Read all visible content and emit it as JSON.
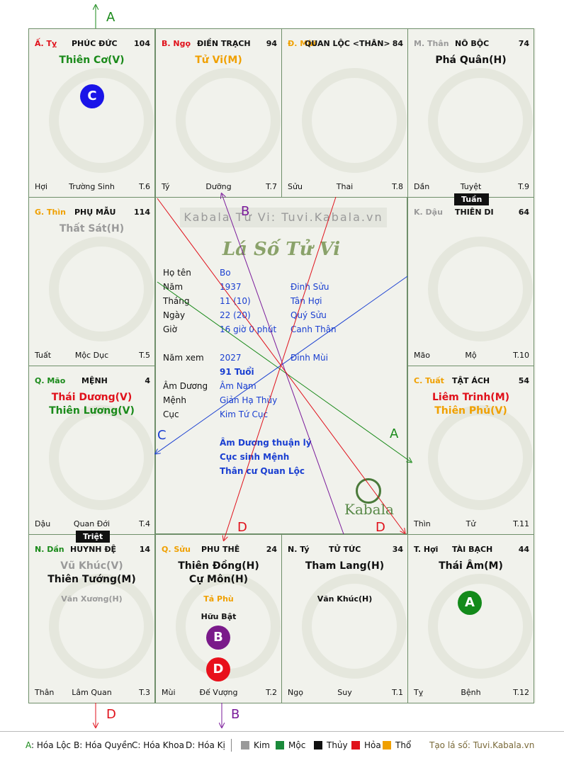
{
  "palaces": [
    {
      "branch": "Ấ. Tỵ",
      "branch_color": "#e0111b",
      "name": "PHÚC ĐỨC",
      "num": "104",
      "stars": [
        {
          "t": "Thiên Cơ(V)",
          "c": "#1a8a1a"
        }
      ],
      "minor": [],
      "bottom_left": "Hợi",
      "bottom_center": "Trường Sinh",
      "bottom_right": "T.6"
    },
    {
      "branch": "B. Ngọ",
      "branch_color": "#e0111b",
      "name": "ĐIỀN TRẠCH",
      "num": "94",
      "stars": [
        {
          "t": "Tử Vi(M)",
          "c": "#f0a000"
        }
      ],
      "minor": [],
      "bottom_left": "Tý",
      "bottom_center": "Dưỡng",
      "bottom_right": "T.7"
    },
    {
      "branch": "Đ. Mùi",
      "branch_color": "#f0a000",
      "name": "QUAN LỘC <THÂN>",
      "num": "84",
      "stars": [],
      "minor": [],
      "bottom_left": "Sửu",
      "bottom_center": "Thai",
      "bottom_right": "T.8"
    },
    {
      "branch": "M. Thân",
      "branch_color": "#9a9a9a",
      "name": "NÔ BỘC",
      "num": "74",
      "stars": [
        {
          "t": "Phá Quân(H)",
          "c": "#111111"
        }
      ],
      "minor": [],
      "bottom_left": "Dần",
      "bottom_center": "Tuyệt",
      "bottom_right": "T.9"
    },
    {
      "branch": "G. Thìn",
      "branch_color": "#f0a000",
      "name": "PHỤ MẪU",
      "num": "114",
      "stars": [
        {
          "t": "Thất Sát(H)",
          "c": "#9a9a9a"
        }
      ],
      "minor": [],
      "bottom_left": "Tuất",
      "bottom_center": "Mộc Dục",
      "bottom_right": "T.5"
    },
    {
      "branch": "K. Dậu",
      "branch_color": "#9a9a9a",
      "name": "THIÊN DI",
      "num": "64",
      "stars": [],
      "minor": [],
      "bottom_left": "Mão",
      "bottom_center": "Mộ",
      "bottom_right": "T.10"
    },
    {
      "branch": "Q. Mão",
      "branch_color": "#1a8a1a",
      "name": "MỆNH",
      "num": "4",
      "stars": [
        {
          "t": "Thái Dương(V)",
          "c": "#e0111b"
        },
        {
          "t": "Thiên Lương(V)",
          "c": "#1a8a1a"
        }
      ],
      "minor": [],
      "bottom_left": "Dậu",
      "bottom_center": "Quan Đới",
      "bottom_right": "T.4"
    },
    {
      "branch": "C. Tuất",
      "branch_color": "#f0a000",
      "name": "TẬT ÁCH",
      "num": "54",
      "stars": [
        {
          "t": "Liêm Trinh(M)",
          "c": "#e0111b"
        },
        {
          "t": "Thiên Phủ(V)",
          "c": "#f0a000"
        }
      ],
      "minor": [],
      "bottom_left": "Thìn",
      "bottom_center": "Tử",
      "bottom_right": "T.11"
    },
    {
      "branch": "N. Dần",
      "branch_color": "#1a8a1a",
      "name": "HUYNH ĐỆ",
      "num": "14",
      "stars": [
        {
          "t": "Vũ Khúc(V)",
          "c": "#9a9a9a"
        },
        {
          "t": "Thiên Tướng(M)",
          "c": "#111111"
        }
      ],
      "minor": [
        {
          "t": "Văn Xương(H)",
          "c": "#9a9a9a"
        }
      ],
      "bottom_left": "Thân",
      "bottom_center": "Lâm Quan",
      "bottom_right": "T.3"
    },
    {
      "branch": "Q. Sửu",
      "branch_color": "#f0a000",
      "name": "PHU THÊ",
      "num": "24",
      "stars": [
        {
          "t": "Thiên Đồng(H)",
          "c": "#111111"
        },
        {
          "t": "Cự Môn(H)",
          "c": "#111111"
        }
      ],
      "minor": [
        {
          "t": "Tả Phù",
          "c": "#f0a000"
        },
        {
          "t": "Hữu Bật",
          "c": "#111111"
        }
      ],
      "bottom_left": "Mùi",
      "bottom_center": "Đế Vượng",
      "bottom_right": "T.2"
    },
    {
      "branch": "N. Tý",
      "branch_color": "#111111",
      "name": "TỬ TỨC",
      "num": "34",
      "stars": [
        {
          "t": "Tham Lang(H)",
          "c": "#111111"
        }
      ],
      "minor": [
        {
          "t": "Văn Khúc(H)",
          "c": "#111111"
        }
      ],
      "bottom_left": "Ngọ",
      "bottom_center": "Suy",
      "bottom_right": "T.1"
    },
    {
      "branch": "T. Hợi",
      "branch_color": "#111111",
      "name": "TÀI BẠCH",
      "num": "44",
      "stars": [
        {
          "t": "Thái Âm(M)",
          "c": "#111111"
        }
      ],
      "minor": [],
      "bottom_left": "Tỵ",
      "bottom_center": "Bệnh",
      "bottom_right": "T.12"
    }
  ],
  "tags": {
    "tuan": "Tuần",
    "triet": "Triệt"
  },
  "center": {
    "watermark": "Kabala Tử Vi: Tuvi.Kabala.vn",
    "title": "Lá Số Tử Vi",
    "rows": [
      {
        "label": "Họ tên",
        "v1": "Bo",
        "v2": ""
      },
      {
        "label": "Năm",
        "v1": "1937",
        "v2": "Đinh Sửu"
      },
      {
        "label": "Tháng",
        "v1": "11  (10)",
        "v2": "Tân Hợi"
      },
      {
        "label": "Ngày",
        "v1": "22  (20)",
        "v2": "Quý Sửu"
      },
      {
        "label": "Giờ",
        "v1": "16 giờ 0 phút",
        "v2": "Canh Thân"
      }
    ],
    "year_view_label": "Năm xem",
    "year_view": "2027",
    "year_view_can": "Đinh Mùi",
    "age": "91 Tuổi",
    "rows2": [
      {
        "label": "Âm Dương",
        "v1": "Âm Nam"
      },
      {
        "label": "Mệnh",
        "v1": "Giản Hạ Thủy"
      },
      {
        "label": "Cục",
        "v1": "Kim Tứ Cục"
      }
    ],
    "notes": [
      "Âm Dương thuận lý",
      "Cục sinh Mệnh",
      "Thân cư Quan Lộc"
    ],
    "logo": "Kabala"
  },
  "markers": {
    "A": "A",
    "B": "B",
    "C": "C",
    "D": "D"
  },
  "legend": {
    "a": "A: Hóa Lộc",
    "b": "B: Hóa Quyền",
    "c": "C: Hóa Khoa",
    "d": "D: Hóa Kị",
    "elements": [
      {
        "t": "Kim",
        "c": "#999999"
      },
      {
        "t": "Mộc",
        "c": "#1a8a3a"
      },
      {
        "t": "Thủy",
        "c": "#111111"
      },
      {
        "t": "Hỏa",
        "c": "#e0111b"
      },
      {
        "t": "Thổ",
        "c": "#f0a000"
      }
    ],
    "credit": "Tạo lá số: Tuvi.Kabala.vn"
  }
}
